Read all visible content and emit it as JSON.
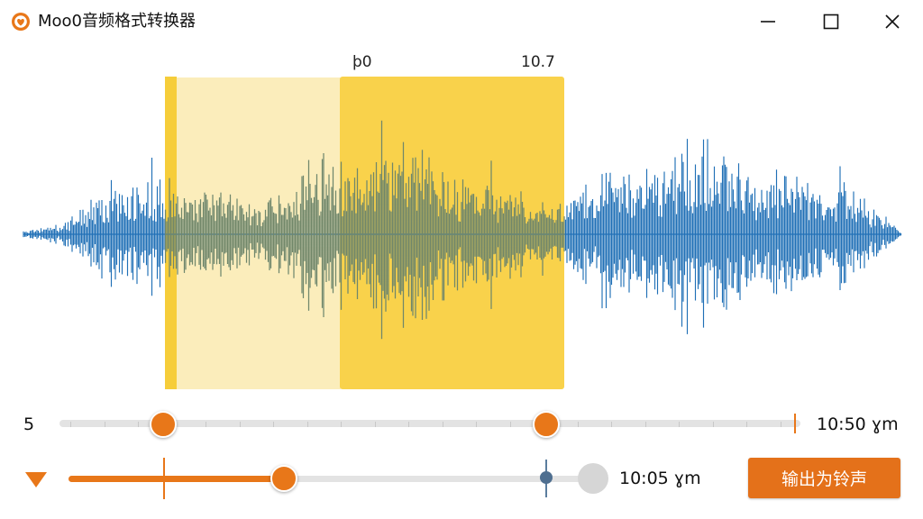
{
  "window": {
    "title": "Moo0音频格式转换器",
    "icon": "heart-shield-icon",
    "controls": [
      "minimize-icon",
      "maximize-icon",
      "close-icon"
    ]
  },
  "waveform": {
    "start_label": "þ0",
    "end_label": "10.7",
    "colors": {
      "wave": "#2070b6",
      "selection_light": "#fbedbb",
      "selection_strong": "#f9d24b",
      "marker": "#f6cd3a"
    }
  },
  "range_slider": {
    "left_value": "5",
    "right_value": "10:50 ɣm",
    "start_fraction": 0.14,
    "end_fraction": 0.66
  },
  "playback_slider": {
    "icon": "triangle-down-icon",
    "progress_fraction": 0.41,
    "time": "10:05 ɣm"
  },
  "export_button": {
    "label": "输出为铃声"
  },
  "accent": "#e87719"
}
